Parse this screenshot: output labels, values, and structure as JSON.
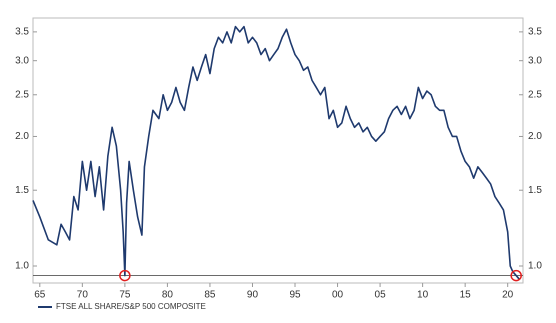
{
  "chart_data": {
    "type": "line",
    "log_y": true,
    "xlim": [
      1964.2,
      2021.8
    ],
    "ylim": [
      0.913,
      3.77
    ],
    "xticks": [
      {
        "value": 1965,
        "label": "65"
      },
      {
        "value": 1970,
        "label": "70"
      },
      {
        "value": 1975,
        "label": "75"
      },
      {
        "value": 1980,
        "label": "80"
      },
      {
        "value": 1985,
        "label": "85"
      },
      {
        "value": 1990,
        "label": "90"
      },
      {
        "value": 1995,
        "label": "95"
      },
      {
        "value": 2000,
        "label": "00"
      },
      {
        "value": 2005,
        "label": "05"
      },
      {
        "value": 2010,
        "label": "10"
      },
      {
        "value": 2015,
        "label": "15"
      },
      {
        "value": 2020,
        "label": "20"
      }
    ],
    "yticks": [
      {
        "value": 1,
        "label": "1.0"
      },
      1.5,
      {
        "value": 2,
        "label": "2.0"
      },
      2.5,
      {
        "value": 3,
        "label": "3.0"
      },
      3.5
    ],
    "hline": 0.95,
    "hline_color": "#555555",
    "highlights": [
      {
        "x": 1975,
        "y": 0.95
      },
      {
        "x": 2021,
        "y": 0.95
      }
    ],
    "highlight_color": "#e02020",
    "series": [
      {
        "name": "FTSE ALL SHARE/S&P 500 COMPOSITE",
        "color": "#1f3a6e",
        "x": [
          1964.2,
          1965,
          1966,
          1967,
          1967.5,
          1968,
          1968.5,
          1969,
          1969.5,
          1970,
          1970.5,
          1971,
          1971.5,
          1972,
          1972.5,
          1973,
          1973.5,
          1974,
          1974.5,
          1974.8,
          1975,
          1975.2,
          1975.5,
          1976,
          1976.5,
          1977,
          1977.3,
          1977.8,
          1978.3,
          1979,
          1979.5,
          1980,
          1980.5,
          1981,
          1981.5,
          1982,
          1982.5,
          1983,
          1983.5,
          1984,
          1984.5,
          1985,
          1985.5,
          1986,
          1986.5,
          1987,
          1987.5,
          1988,
          1988.5,
          1989,
          1989.5,
          1990,
          1990.5,
          1991,
          1991.5,
          1992,
          1992.5,
          1993,
          1993.5,
          1994,
          1994.5,
          1995,
          1995.5,
          1996,
          1996.5,
          1997,
          1997.5,
          1998,
          1998.5,
          1999,
          1999.5,
          2000,
          2000.5,
          2001,
          2001.5,
          2002,
          2002.5,
          2003,
          2003.5,
          2004,
          2004.5,
          2005,
          2005.5,
          2006,
          2006.5,
          2007,
          2007.5,
          2008,
          2008.5,
          2009,
          2009.5,
          2010,
          2010.5,
          2011,
          2011.5,
          2012,
          2012.5,
          2013,
          2013.5,
          2014,
          2014.5,
          2015,
          2015.5,
          2016,
          2016.5,
          2017,
          2017.5,
          2018,
          2018.5,
          2019,
          2019.5,
          2020,
          2020.3,
          2020.6,
          2021,
          2021.4
        ],
        "values": [
          1.42,
          1.3,
          1.15,
          1.12,
          1.25,
          1.2,
          1.15,
          1.45,
          1.35,
          1.75,
          1.5,
          1.75,
          1.45,
          1.7,
          1.35,
          1.8,
          2.1,
          1.9,
          1.5,
          1.2,
          0.95,
          1.4,
          1.75,
          1.5,
          1.3,
          1.18,
          1.7,
          2.0,
          2.3,
          2.2,
          2.5,
          2.3,
          2.4,
          2.6,
          2.4,
          2.3,
          2.6,
          2.9,
          2.7,
          2.9,
          3.1,
          2.8,
          3.2,
          3.4,
          3.3,
          3.5,
          3.3,
          3.6,
          3.5,
          3.6,
          3.3,
          3.4,
          3.3,
          3.1,
          3.2,
          3.0,
          3.1,
          3.2,
          3.4,
          3.55,
          3.3,
          3.1,
          3.0,
          2.85,
          2.9,
          2.7,
          2.6,
          2.5,
          2.6,
          2.2,
          2.3,
          2.1,
          2.15,
          2.35,
          2.2,
          2.1,
          2.15,
          2.05,
          2.1,
          2.0,
          1.95,
          2.0,
          2.05,
          2.2,
          2.3,
          2.35,
          2.25,
          2.35,
          2.2,
          2.3,
          2.6,
          2.45,
          2.55,
          2.5,
          2.35,
          2.3,
          2.3,
          2.1,
          2.0,
          2.0,
          1.85,
          1.75,
          1.7,
          1.6,
          1.7,
          1.65,
          1.6,
          1.55,
          1.45,
          1.4,
          1.35,
          1.2,
          1.0,
          0.97,
          0.95,
          0.93
        ]
      }
    ]
  }
}
